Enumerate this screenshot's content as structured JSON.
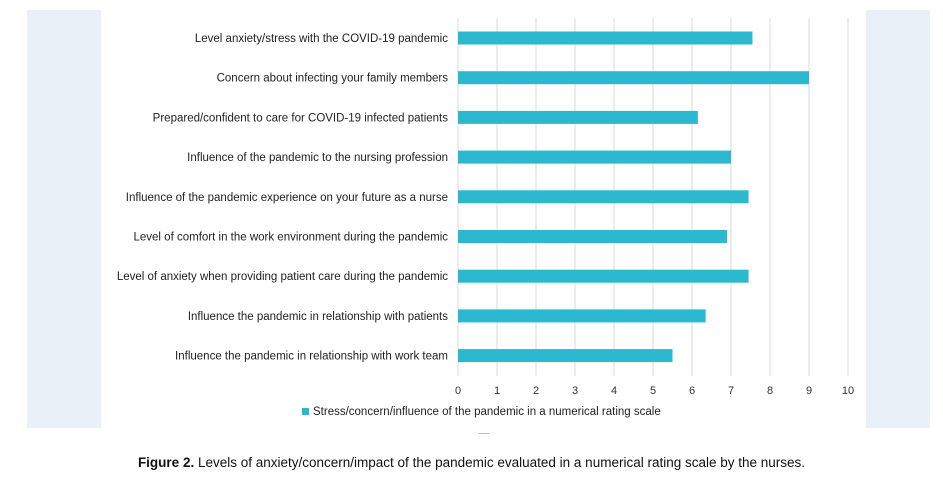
{
  "chart_data": {
    "type": "bar",
    "orientation": "horizontal",
    "categories": [
      "Level anxiety/stress with the COVID-19 pandemic",
      "Concern about infecting your family members",
      "Prepared/confident to care for COVID-19 infected patients",
      "Influence of the pandemic to the nursing profession",
      "Influence of the pandemic experience on your future as a nurse",
      "Level of comfort in the work environment during the pandemic",
      "Level of anxiety when providing patient care during the pandemic",
      "Influence the pandemic in relationship with patients",
      "Influence the pandemic in relationship with work team"
    ],
    "series": [
      {
        "name": "Stress/concern/influence of the pandemic in a numerical rating scale",
        "values": [
          7.55,
          9.0,
          6.15,
          7.0,
          7.45,
          6.9,
          7.45,
          6.35,
          5.5
        ]
      }
    ],
    "xlim": [
      0,
      10
    ],
    "xticks": [
      "0",
      "1",
      "2",
      "3",
      "4",
      "5",
      "6",
      "7",
      "8",
      "9",
      "10"
    ],
    "grid": true,
    "legend_position": "bottom",
    "colors": {
      "bar": "#2cb8cf",
      "grid": "#d9d9d9"
    }
  },
  "caption": {
    "label": "Figure 2.",
    "text": " Levels of anxiety/concern/impact of the pandemic evaluated in a numerical rating scale by the nurses."
  }
}
